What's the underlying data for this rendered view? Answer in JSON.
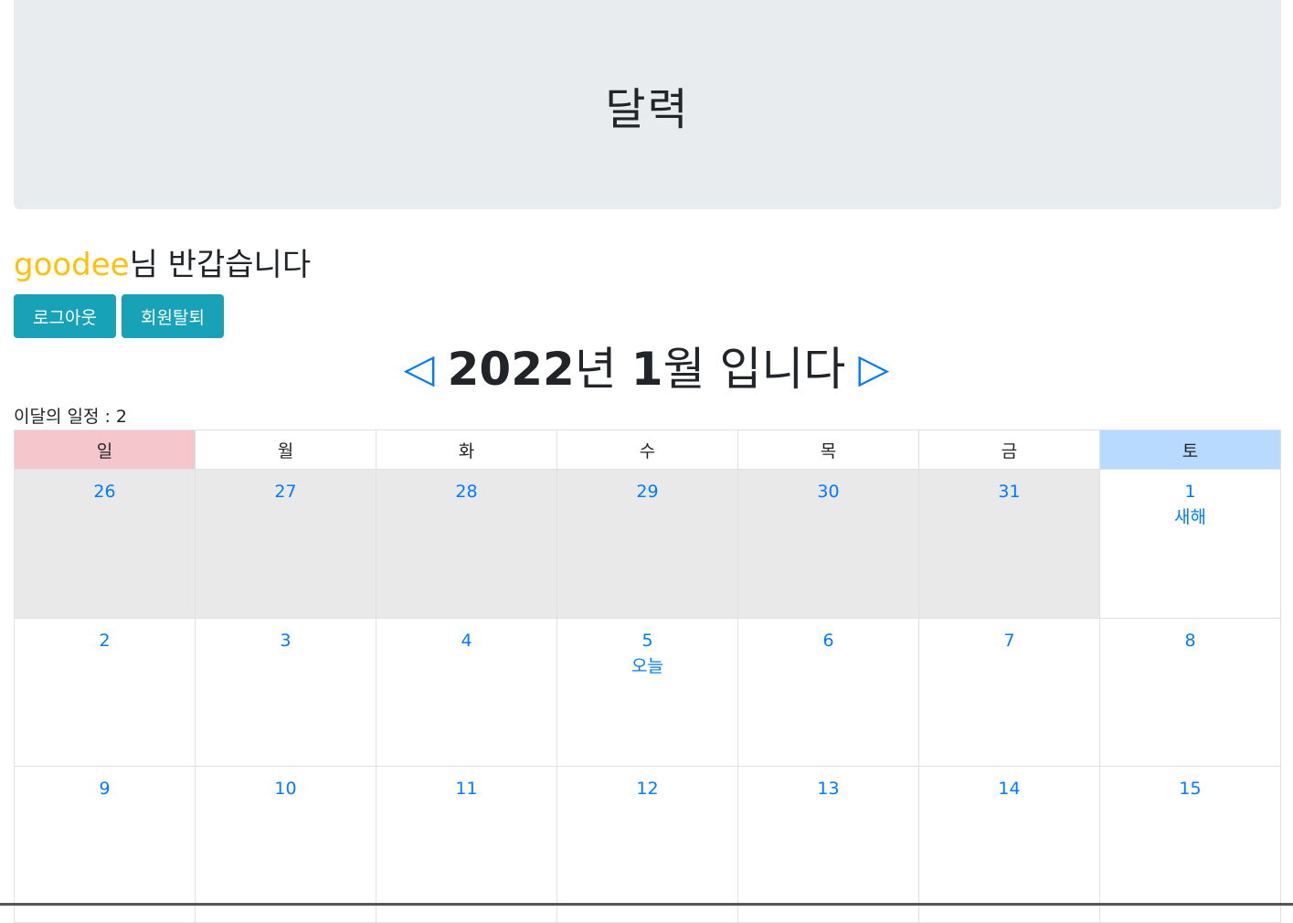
{
  "header": {
    "title": "달력"
  },
  "greeting": {
    "user": "goodee",
    "suffix": "님 반갑습니다"
  },
  "buttons": {
    "logout": "로그아웃",
    "withdraw": "회원탈퇴"
  },
  "nav": {
    "prev_icon": "◁",
    "next_icon": "▷",
    "year": "2022",
    "year_unit": "년 ",
    "month": "1",
    "month_unit": "월 입니다"
  },
  "schedule": {
    "label": "이달의 일정 : ",
    "count": "2"
  },
  "calendar": {
    "weekdays": [
      "일",
      "월",
      "화",
      "수",
      "목",
      "금",
      "토"
    ],
    "weeks": [
      [
        "26",
        "27",
        "28",
        "29",
        "30",
        "31",
        "1"
      ],
      [
        "2",
        "3",
        "4",
        "5",
        "6",
        "7",
        "8"
      ],
      [
        "9",
        "10",
        "11",
        "12",
        "13",
        "14",
        "15"
      ]
    ],
    "events": {
      "new_year": "새해",
      "today": "오늘"
    }
  },
  "colors": {
    "brand": "#17a2b8",
    "user": "#ffc107",
    "link": "#007bff",
    "sunday": "#f5c6cb",
    "saturday": "#b8daff",
    "prev_month": "#e9e9e9"
  }
}
